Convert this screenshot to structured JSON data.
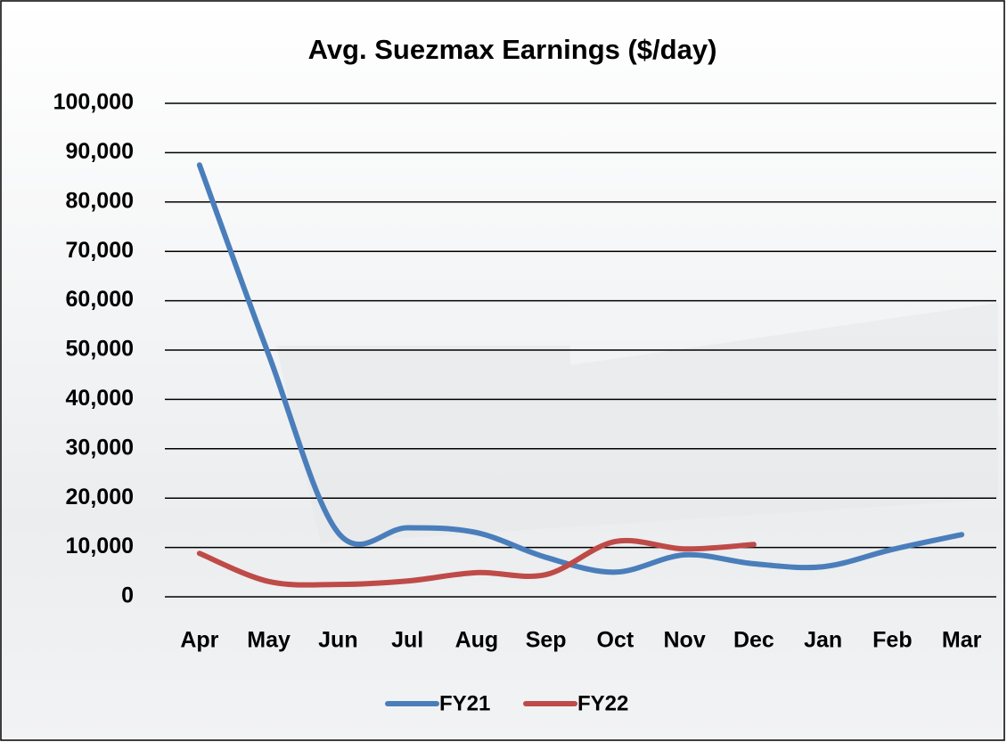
{
  "chart_data": {
    "type": "line",
    "title": "Avg. Suezmax Earnings ($/day)",
    "categories": [
      "Apr",
      "May",
      "Jun",
      "Jul",
      "Aug",
      "Sep",
      "Oct",
      "Nov",
      "Dec",
      "Jan",
      "Feb",
      "Mar"
    ],
    "series": [
      {
        "name": "FY21",
        "color": "#4a7ebb",
        "values": [
          87500,
          49000,
          13000,
          14000,
          13000,
          8000,
          5000,
          8500,
          6700,
          6100,
          9600,
          12600
        ]
      },
      {
        "name": "FY22",
        "color": "#be4b48",
        "values": [
          8800,
          3100,
          2500,
          3200,
          4900,
          4500,
          11200,
          9700,
          10600,
          null,
          null,
          null
        ]
      }
    ],
    "ylim": [
      0,
      100000
    ],
    "yticks": [
      0,
      {
        "value": 10000,
        "label": "10,000"
      },
      {
        "value": 20000,
        "label": "20,000"
      },
      {
        "value": 30000,
        "label": "30,000"
      },
      {
        "value": 40000,
        "label": "40,000"
      },
      {
        "value": 50000,
        "label": "50,000"
      },
      {
        "value": 60000,
        "label": "60,000"
      },
      {
        "value": 70000,
        "label": "70,000"
      },
      {
        "value": 80000,
        "label": "80,000"
      },
      {
        "value": 90000,
        "label": "90,000"
      },
      {
        "value": 100000,
        "label": "100,000"
      }
    ],
    "grid": true,
    "legend": "bottom",
    "smooth": true
  }
}
